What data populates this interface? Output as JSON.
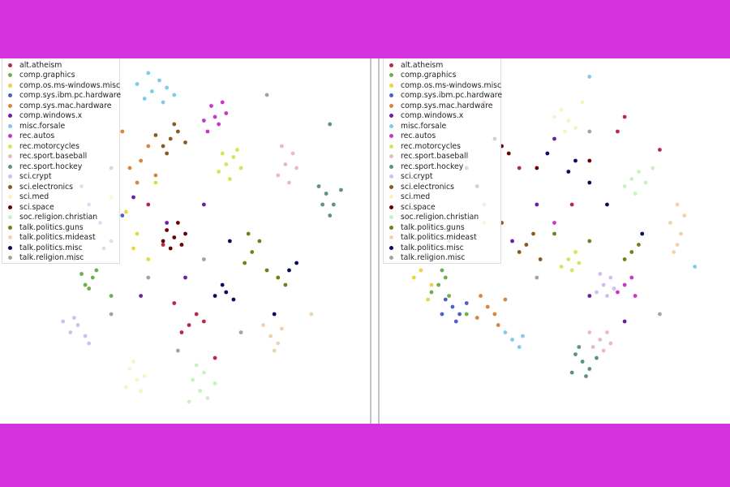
{
  "chart_data": [
    {
      "type": "scatter",
      "panel": "left",
      "legend_position": "top-left",
      "grid": false,
      "xlim": [
        0,
        100
      ],
      "ylim": [
        0,
        100
      ],
      "series_points": [
        [
          [
            51,
            27
          ],
          [
            53,
            30
          ],
          [
            49,
            25
          ],
          [
            55,
            28
          ],
          [
            44,
            49
          ],
          [
            40,
            60
          ],
          [
            58,
            18
          ],
          [
            47,
            33
          ]
        ],
        [
          [
            25,
            40
          ],
          [
            23,
            38
          ],
          [
            26,
            42
          ],
          [
            22,
            41
          ],
          [
            24,
            37
          ],
          [
            30,
            35
          ],
          [
            20,
            45
          ]
        ],
        [
          [
            37,
            52
          ],
          [
            34,
            58
          ],
          [
            40,
            45
          ],
          [
            30,
            62
          ],
          [
            36,
            48
          ],
          [
            42,
            66
          ]
        ],
        [
          [
            27,
            55
          ],
          [
            24,
            60
          ],
          [
            30,
            50
          ],
          [
            22,
            65
          ],
          [
            33,
            57
          ],
          [
            28,
            48
          ]
        ],
        [
          [
            38,
            72
          ],
          [
            40,
            76
          ],
          [
            35,
            70
          ],
          [
            42,
            68
          ],
          [
            33,
            80
          ],
          [
            37,
            66
          ]
        ],
        [
          [
            36,
            62
          ],
          [
            45,
            55
          ],
          [
            30,
            70
          ],
          [
            50,
            40
          ],
          [
            38,
            35
          ],
          [
            55,
            60
          ]
        ],
        [
          [
            41,
            91
          ],
          [
            43,
            94
          ],
          [
            39,
            89
          ],
          [
            45,
            92
          ],
          [
            37,
            93
          ],
          [
            44,
            88
          ],
          [
            40,
            96
          ],
          [
            47,
            90
          ]
        ],
        [
          [
            58,
            84
          ],
          [
            60,
            88
          ],
          [
            56,
            80
          ],
          [
            59,
            82
          ],
          [
            61,
            85
          ],
          [
            57,
            87
          ],
          [
            55,
            83
          ]
        ],
        [
          [
            61,
            71
          ],
          [
            63,
            73
          ],
          [
            59,
            69
          ],
          [
            65,
            70
          ],
          [
            62,
            67
          ],
          [
            60,
            74
          ],
          [
            64,
            75
          ]
        ],
        [
          [
            77,
            71
          ],
          [
            79,
            74
          ],
          [
            75,
            68
          ],
          [
            78,
            66
          ],
          [
            80,
            70
          ],
          [
            76,
            76
          ]
        ],
        [
          [
            88,
            63
          ],
          [
            90,
            60
          ],
          [
            86,
            65
          ],
          [
            89,
            57
          ],
          [
            92,
            64
          ],
          [
            87,
            60
          ],
          [
            89,
            82
          ]
        ],
        [
          [
            21,
            27
          ],
          [
            19,
            25
          ],
          [
            23,
            24
          ],
          [
            20,
            29
          ],
          [
            24,
            22
          ],
          [
            17,
            28
          ]
        ],
        [
          [
            46,
            78
          ],
          [
            44,
            76
          ],
          [
            48,
            80
          ],
          [
            45,
            74
          ],
          [
            50,
            77
          ],
          [
            47,
            82
          ],
          [
            42,
            79
          ]
        ],
        [
          [
            37,
            12
          ],
          [
            35,
            15
          ],
          [
            38,
            9
          ],
          [
            36,
            17
          ],
          [
            39,
            13
          ],
          [
            34,
            10
          ]
        ],
        [
          [
            47,
            51
          ],
          [
            45,
            53
          ],
          [
            49,
            49
          ],
          [
            46,
            48
          ],
          [
            48,
            55
          ],
          [
            44,
            50
          ],
          [
            50,
            52
          ]
        ],
        [
          [
            54,
            9
          ],
          [
            52,
            12
          ],
          [
            56,
            7
          ],
          [
            55,
            14
          ],
          [
            51,
            6
          ],
          [
            58,
            11
          ],
          [
            53,
            16
          ]
        ],
        [
          [
            68,
            47
          ],
          [
            70,
            50
          ],
          [
            66,
            44
          ],
          [
            72,
            42
          ],
          [
            67,
            52
          ],
          [
            75,
            40
          ],
          [
            77,
            38
          ]
        ],
        [
          [
            73,
            24
          ],
          [
            75,
            22
          ],
          [
            71,
            27
          ],
          [
            76,
            26
          ],
          [
            74,
            20
          ],
          [
            84,
            30
          ]
        ],
        [
          [
            61,
            36
          ],
          [
            60,
            38
          ],
          [
            63,
            34
          ],
          [
            58,
            35
          ],
          [
            80,
            44
          ],
          [
            78,
            42
          ],
          [
            74,
            30
          ],
          [
            62,
            50
          ]
        ],
        [
          [
            40,
            40
          ],
          [
            55,
            45
          ],
          [
            30,
            30
          ],
          [
            65,
            25
          ],
          [
            72,
            90
          ],
          [
            48,
            20
          ]
        ]
      ]
    },
    {
      "type": "scatter",
      "panel": "right",
      "legend_position": "top-left",
      "grid": false,
      "xlim": [
        0,
        100
      ],
      "ylim": [
        0,
        100
      ],
      "series_points": [
        [
          [
            68,
            80
          ],
          [
            70,
            84
          ],
          [
            40,
            70
          ],
          [
            55,
            60
          ],
          [
            30,
            88
          ],
          [
            80,
            75
          ]
        ],
        [
          [
            17,
            38
          ],
          [
            19,
            40
          ],
          [
            15,
            36
          ],
          [
            20,
            35
          ],
          [
            18,
            42
          ],
          [
            25,
            30
          ]
        ],
        [
          [
            15,
            38
          ],
          [
            12,
            42
          ],
          [
            14,
            34
          ],
          [
            10,
            40
          ],
          [
            22,
            45
          ],
          [
            30,
            55
          ]
        ],
        [
          [
            21,
            32
          ],
          [
            23,
            30
          ],
          [
            19,
            34
          ],
          [
            22,
            28
          ],
          [
            25,
            33
          ],
          [
            18,
            30
          ]
        ],
        [
          [
            31,
            32
          ],
          [
            33,
            30
          ],
          [
            29,
            35
          ],
          [
            34,
            27
          ],
          [
            28,
            29
          ],
          [
            36,
            34
          ]
        ],
        [
          [
            45,
            60
          ],
          [
            25,
            70
          ],
          [
            60,
            35
          ],
          [
            38,
            50
          ],
          [
            70,
            28
          ],
          [
            50,
            78
          ]
        ],
        [
          [
            38,
            23
          ],
          [
            40,
            21
          ],
          [
            36,
            25
          ],
          [
            41,
            24
          ],
          [
            90,
            43
          ],
          [
            60,
            95
          ]
        ],
        [
          [
            70,
            38
          ],
          [
            72,
            40
          ],
          [
            68,
            36
          ],
          [
            73,
            35
          ],
          [
            50,
            55
          ]
        ],
        [
          [
            54,
            45
          ],
          [
            56,
            47
          ],
          [
            52,
            43
          ],
          [
            55,
            42
          ],
          [
            57,
            44
          ]
        ],
        [
          [
            63,
            23
          ],
          [
            65,
            25
          ],
          [
            61,
            21
          ],
          [
            64,
            20
          ],
          [
            66,
            22
          ],
          [
            60,
            25
          ]
        ],
        [
          [
            58,
            17
          ],
          [
            60,
            15
          ],
          [
            56,
            19
          ],
          [
            59,
            13
          ],
          [
            62,
            18
          ],
          [
            55,
            14
          ],
          [
            57,
            21
          ]
        ],
        [
          [
            64,
            38
          ],
          [
            66,
            40
          ],
          [
            62,
            36
          ],
          [
            65,
            35
          ],
          [
            63,
            41
          ],
          [
            67,
            37
          ]
        ],
        [
          [
            42,
            49
          ],
          [
            44,
            52
          ],
          [
            40,
            47
          ],
          [
            46,
            45
          ],
          [
            35,
            55
          ]
        ],
        [
          [
            54,
            83
          ],
          [
            52,
            86
          ],
          [
            56,
            81
          ],
          [
            50,
            84
          ],
          [
            53,
            80
          ],
          [
            58,
            88
          ]
        ],
        [
          [
            35,
            76
          ],
          [
            37,
            74
          ],
          [
            33,
            78
          ],
          [
            45,
            70
          ],
          [
            28,
            65
          ],
          [
            60,
            72
          ]
        ],
        [
          [
            72,
            67
          ],
          [
            74,
            69
          ],
          [
            70,
            65
          ],
          [
            76,
            66
          ],
          [
            73,
            63
          ],
          [
            78,
            70
          ]
        ],
        [
          [
            72,
            47
          ],
          [
            70,
            45
          ],
          [
            74,
            49
          ],
          [
            60,
            50
          ],
          [
            50,
            52
          ]
        ],
        [
          [
            85,
            49
          ],
          [
            86,
            52
          ],
          [
            84,
            47
          ],
          [
            85,
            60
          ],
          [
            87,
            57
          ],
          [
            83,
            55
          ]
        ],
        [
          [
            54,
            69
          ],
          [
            56,
            72
          ],
          [
            60,
            66
          ],
          [
            48,
            74
          ],
          [
            75,
            52
          ],
          [
            65,
            60
          ]
        ],
        [
          [
            45,
            40
          ],
          [
            60,
            80
          ],
          [
            30,
            60
          ],
          [
            80,
            30
          ],
          [
            20,
            50
          ]
        ]
      ]
    }
  ],
  "legend": {
    "labels": [
      "alt.atheism",
      "comp.graphics",
      "comp.os.ms-windows.misc",
      "comp.sys.ibm.pc.hardware",
      "comp.sys.mac.hardware",
      "comp.windows.x",
      "misc.forsale",
      "rec.autos",
      "rec.motorcycles",
      "rec.sport.baseball",
      "rec.sport.hockey",
      "sci.crypt",
      "sci.electronics",
      "sci.med",
      "sci.space",
      "soc.religion.christian",
      "talk.politics.guns",
      "talk.politics.mideast",
      "talk.politics.misc",
      "talk.religion.misc"
    ],
    "colors": [
      "#b52a4a",
      "#6ab04c",
      "#e8d83e",
      "#4a62c8",
      "#d9853f",
      "#6a1fa0",
      "#7ecbea",
      "#c837c8",
      "#d2e65a",
      "#e8bcbc",
      "#5e8f88",
      "#d5bcf0",
      "#8a5a22",
      "#fbf2c4",
      "#6b0000",
      "#c8f2c0",
      "#7a7a1a",
      "#f1d2ac",
      "#0b0b5c",
      "#a3a3a3"
    ]
  },
  "page": {
    "band_color": "#d633e0"
  }
}
